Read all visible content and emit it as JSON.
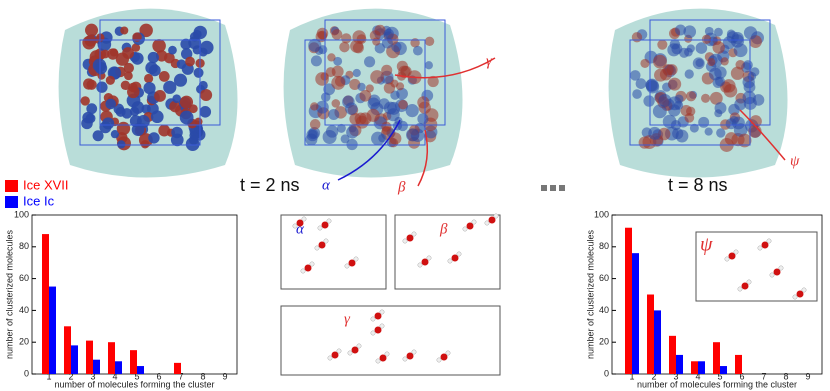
{
  "chart_data": [
    {
      "type": "bar",
      "categories": [
        "1",
        "2",
        "3",
        "4",
        "5",
        "6",
        "7",
        "8",
        "9"
      ],
      "xlabel": "number of molecules forming the cluster",
      "ylabel": "number of clusterized molecules",
      "ylim": [
        0,
        100
      ],
      "yticks": [
        0,
        20,
        40,
        60,
        80,
        100
      ],
      "series": [
        {
          "name": "Ice XVII",
          "color": "#ff0000",
          "values": [
            88,
            30,
            21,
            20,
            15,
            0,
            7,
            0,
            0
          ]
        },
        {
          "name": "Ice Ic",
          "color": "#0000ff",
          "values": [
            55,
            18,
            9,
            8,
            5,
            0,
            0,
            0,
            0
          ]
        }
      ]
    },
    {
      "type": "bar",
      "categories": [
        "1",
        "2",
        "3",
        "4",
        "5",
        "6",
        "7",
        "8",
        "9"
      ],
      "xlabel": "number of molecules forming the cluster",
      "ylabel": "number of clusterized molecules",
      "ylim": [
        0,
        100
      ],
      "yticks": [
        0,
        20,
        40,
        60,
        80,
        100
      ],
      "series": [
        {
          "color": "#ff0000",
          "values": [
            92,
            50,
            24,
            8,
            20,
            12,
            0,
            0,
            0
          ]
        },
        {
          "color": "#0000ff",
          "values": [
            76,
            40,
            12,
            8,
            5,
            0,
            0,
            0,
            0
          ]
        }
      ]
    }
  ],
  "annotations": {
    "time_left": "t = 2 ns",
    "time_right": "t = 8 ns",
    "alpha": "α",
    "beta": "β",
    "gamma": "γ",
    "psi": "ψ"
  }
}
